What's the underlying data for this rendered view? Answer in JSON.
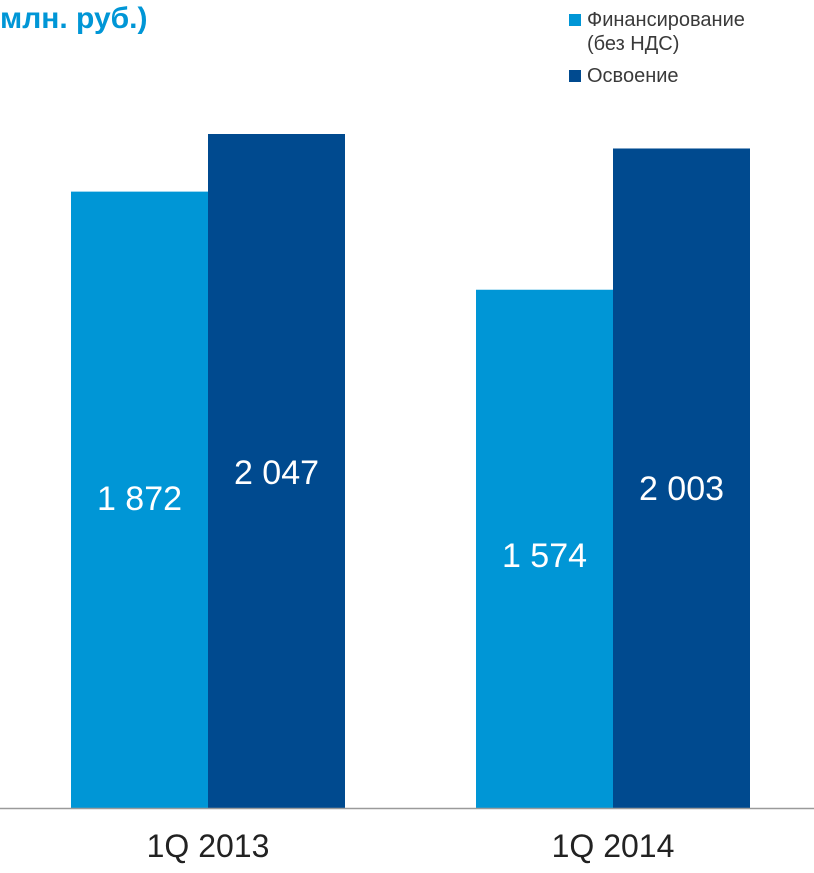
{
  "title": "млн. руб.)",
  "chart_data": {
    "type": "bar",
    "title": "млн. руб.)",
    "categories": [
      "1Q 2013",
      "1Q 2014"
    ],
    "series": [
      {
        "name": "Финансирование\n(без НДС)",
        "values": [
          1872,
          1574
        ],
        "labels": [
          "1 872",
          "1 574"
        ],
        "color": "#0096d6"
      },
      {
        "name": "Освоение",
        "values": [
          2047,
          2003
        ],
        "labels": [
          "2 047",
          "2 003"
        ],
        "color": "#004a8f"
      }
    ],
    "ylim": [
      0,
      2047
    ],
    "grid": false,
    "legend": "top-right",
    "xlabel": "",
    "ylabel": ""
  }
}
